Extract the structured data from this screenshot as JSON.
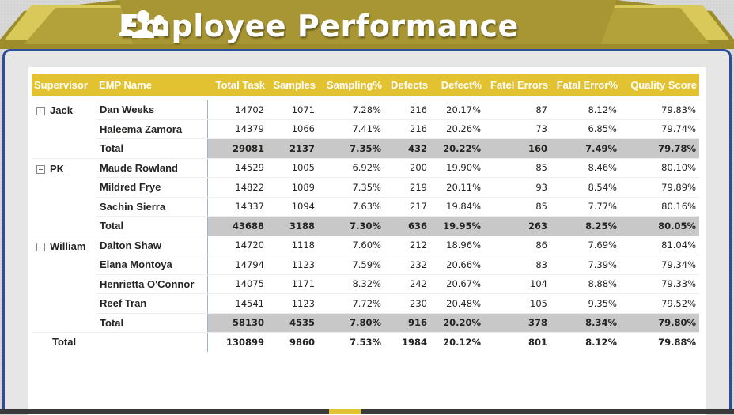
{
  "header": {
    "title": "Employee Performance",
    "icon": "people-group-icon",
    "colors": {
      "gold": "#b3a23a",
      "gold_light": "#d9c95a",
      "title": "#ffffff"
    }
  },
  "frame_color": "#2e4d9b",
  "header_color": "#e3c231",
  "columns": [
    "Supervisor",
    "EMP Name",
    "Total Task",
    "Samples",
    "Sampling%",
    "Defects",
    "Defect%",
    "Fatel Errors",
    "Fatal Error%",
    "Quality Score"
  ],
  "groups": [
    {
      "supervisor": "Jack",
      "rows": [
        [
          "Dan Weeks",
          "14702",
          "1071",
          "7.28%",
          "216",
          "20.17%",
          "87",
          "8.12%",
          "79.83%"
        ],
        [
          "Haleema Zamora",
          "14379",
          "1066",
          "7.41%",
          "216",
          "20.26%",
          "73",
          "6.85%",
          "79.74%"
        ]
      ],
      "total": [
        "Total",
        "29081",
        "2137",
        "7.35%",
        "432",
        "20.22%",
        "160",
        "7.49%",
        "79.78%"
      ]
    },
    {
      "supervisor": "PK",
      "rows": [
        [
          "Maude Rowland",
          "14529",
          "1005",
          "6.92%",
          "200",
          "19.90%",
          "85",
          "8.46%",
          "80.10%"
        ],
        [
          "Mildred Frye",
          "14822",
          "1089",
          "7.35%",
          "219",
          "20.11%",
          "93",
          "8.54%",
          "79.89%"
        ],
        [
          "Sachin Sierra",
          "14337",
          "1094",
          "7.63%",
          "217",
          "19.84%",
          "85",
          "7.77%",
          "80.16%"
        ]
      ],
      "total": [
        "Total",
        "43688",
        "3188",
        "7.30%",
        "636",
        "19.95%",
        "263",
        "8.25%",
        "80.05%"
      ]
    },
    {
      "supervisor": "William",
      "rows": [
        [
          "Dalton Shaw",
          "14720",
          "1118",
          "7.60%",
          "212",
          "18.96%",
          "86",
          "7.69%",
          "81.04%"
        ],
        [
          "Elana Montoya",
          "14794",
          "1123",
          "7.59%",
          "232",
          "20.66%",
          "83",
          "7.39%",
          "79.34%"
        ],
        [
          "Henrietta O'Connor",
          "14075",
          "1171",
          "8.32%",
          "242",
          "20.67%",
          "104",
          "8.88%",
          "79.33%"
        ],
        [
          "Reef Tran",
          "14541",
          "1123",
          "7.72%",
          "230",
          "20.48%",
          "105",
          "9.35%",
          "79.52%"
        ]
      ],
      "total": [
        "Total",
        "58130",
        "4535",
        "7.80%",
        "916",
        "20.20%",
        "378",
        "8.34%",
        "79.80%"
      ]
    }
  ],
  "grand_total": [
    "Total",
    "130899",
    "9860",
    "7.53%",
    "1984",
    "20.12%",
    "801",
    "8.12%",
    "79.88%"
  ]
}
